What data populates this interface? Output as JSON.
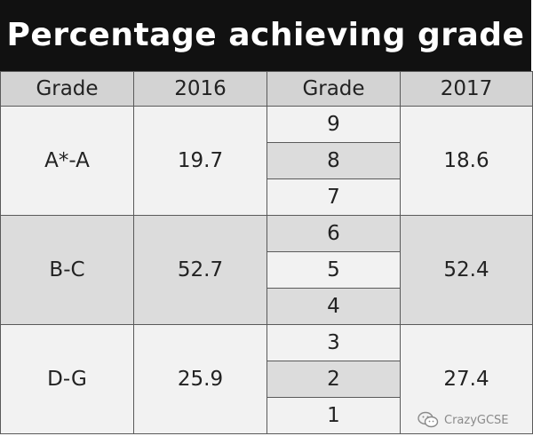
{
  "title": "Percentage achieving grade",
  "headers": [
    "Grade",
    "2016",
    "Grade",
    "2017"
  ],
  "watermark": "CrazyGCSE",
  "colors": {
    "title_bg": "#111111",
    "header_bg": "#d3d3d3",
    "band_light": "#f2f2f2",
    "band_dark": "#dcdcdc"
  },
  "chart_data": {
    "type": "table",
    "title": "Percentage achieving grade",
    "columns": [
      "Grade",
      "2016",
      "Grade",
      "2017"
    ],
    "rows": [
      {
        "old_grade": "A*-A",
        "pct_2016": "19.7",
        "new_grades": [
          "9",
          "8",
          "7"
        ],
        "pct_2017": "18.6"
      },
      {
        "old_grade": "B-C",
        "pct_2016": "52.7",
        "new_grades": [
          "6",
          "5",
          "4"
        ],
        "pct_2017": "52.4"
      },
      {
        "old_grade": "D-G",
        "pct_2016": "25.9",
        "new_grades": [
          "3",
          "2",
          "1"
        ],
        "pct_2017": "27.4"
      }
    ]
  }
}
